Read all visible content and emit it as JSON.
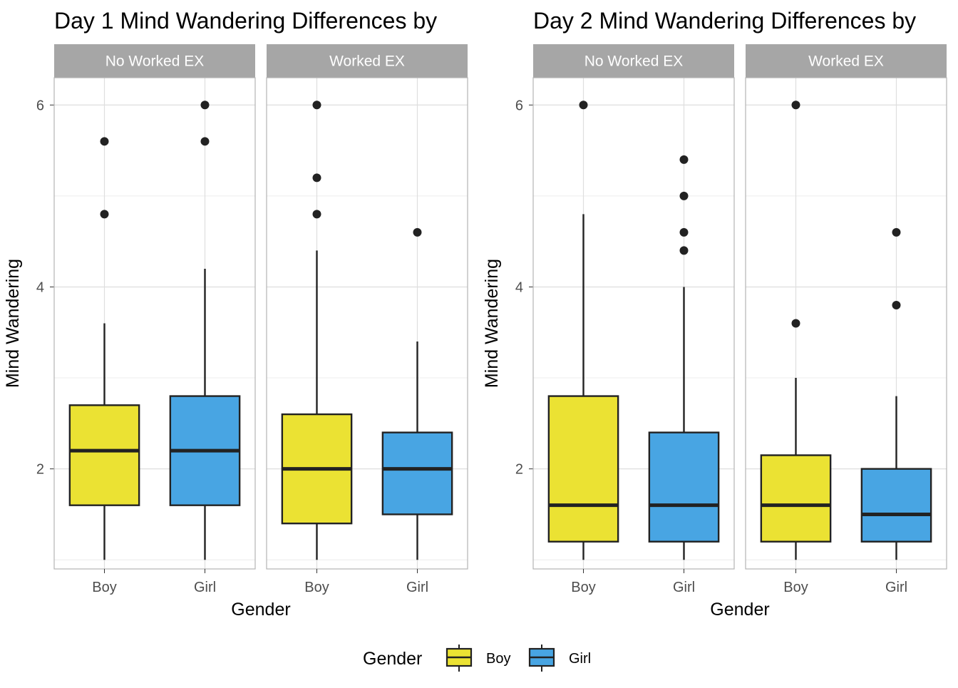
{
  "chart_data": [
    {
      "type": "box",
      "title": "Day 1 Mind Wandering Differences by",
      "xlabel": "Gender",
      "ylabel": "Mind Wandering",
      "ylim": [
        0.9,
        6.3
      ],
      "y_ticks": [
        2,
        4,
        6
      ],
      "categories": [
        "Boy",
        "Girl"
      ],
      "facets": [
        {
          "label": "No Worked EX",
          "boxes": [
            {
              "category": "Boy",
              "min": 1.0,
              "q1": 1.6,
              "median": 2.2,
              "q3": 2.7,
              "max": 3.6,
              "outliers": [
                4.8,
                5.6
              ]
            },
            {
              "category": "Girl",
              "min": 1.0,
              "q1": 1.6,
              "median": 2.2,
              "q3": 2.8,
              "max": 4.2,
              "outliers": [
                5.6,
                6.0
              ]
            }
          ]
        },
        {
          "label": "Worked EX",
          "boxes": [
            {
              "category": "Boy",
              "min": 1.0,
              "q1": 1.4,
              "median": 2.0,
              "q3": 2.6,
              "max": 4.4,
              "outliers": [
                4.8,
                5.2,
                6.0
              ]
            },
            {
              "category": "Girl",
              "min": 1.0,
              "q1": 1.5,
              "median": 2.0,
              "q3": 2.4,
              "max": 3.4,
              "outliers": [
                4.6
              ]
            }
          ]
        }
      ]
    },
    {
      "type": "box",
      "title": "Day 2 Mind Wandering Differences by",
      "xlabel": "Gender",
      "ylabel": "Mind Wandering",
      "ylim": [
        0.9,
        6.3
      ],
      "y_ticks": [
        2,
        4,
        6
      ],
      "categories": [
        "Boy",
        "Girl"
      ],
      "facets": [
        {
          "label": "No Worked EX",
          "boxes": [
            {
              "category": "Boy",
              "min": 1.0,
              "q1": 1.2,
              "median": 1.6,
              "q3": 2.8,
              "max": 4.8,
              "outliers": [
                6.0
              ]
            },
            {
              "category": "Girl",
              "min": 1.0,
              "q1": 1.2,
              "median": 1.6,
              "q3": 2.4,
              "max": 4.0,
              "outliers": [
                4.4,
                4.6,
                5.0,
                5.4
              ]
            }
          ]
        },
        {
          "label": "Worked EX",
          "boxes": [
            {
              "category": "Boy",
              "min": 1.0,
              "q1": 1.2,
              "median": 1.6,
              "q3": 2.15,
              "max": 3.0,
              "outliers": [
                3.6,
                6.0
              ]
            },
            {
              "category": "Girl",
              "min": 1.0,
              "q1": 1.2,
              "median": 1.5,
              "q3": 2.0,
              "max": 2.8,
              "outliers": [
                3.8,
                4.6
              ]
            }
          ]
        }
      ]
    }
  ],
  "legend": {
    "title": "Gender",
    "placement": "bottom",
    "items": [
      {
        "label": "Boy",
        "color": "#ebe233"
      },
      {
        "label": "Girl",
        "color": "#48a5e3"
      }
    ]
  },
  "colors": {
    "Boy": "#ebe233",
    "Girl": "#48a5e3",
    "strip": "#a6a6a6",
    "box_line": "#222222",
    "grid": "#dedede"
  }
}
